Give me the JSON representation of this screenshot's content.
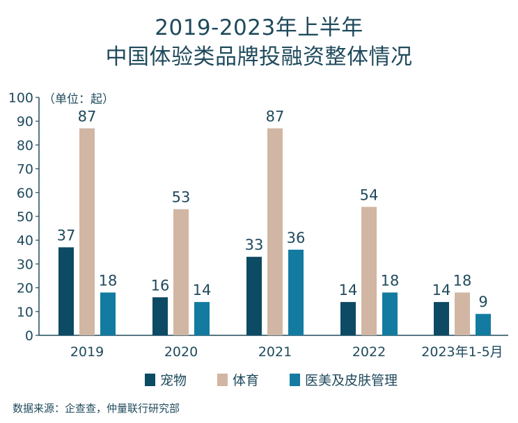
{
  "title_line1": "2019-2023年上半年",
  "title_line2": "中国体验类品牌投融资整体情况",
  "source": "数据来源：企查查，仲量联行研究部",
  "chart_data": {
    "type": "bar",
    "unit_label": "（单位：起）",
    "categories": [
      "2019",
      "2020",
      "2021",
      "2022",
      "2023年1-5月"
    ],
    "series": [
      {
        "name": "宠物",
        "color": "#0d4a63",
        "values": [
          37,
          16,
          33,
          14,
          14
        ]
      },
      {
        "name": "体育",
        "color": "#d1b6a4",
        "values": [
          87,
          53,
          87,
          54,
          18
        ]
      },
      {
        "name": "医美及皮肤管理",
        "color": "#137ba0",
        "values": [
          18,
          14,
          36,
          18,
          9
        ]
      }
    ],
    "ylim": [
      0,
      100
    ],
    "yticks": [
      0,
      10,
      20,
      30,
      40,
      50,
      60,
      70,
      80,
      90,
      100
    ],
    "legend_position": "bottom",
    "grid": false
  }
}
